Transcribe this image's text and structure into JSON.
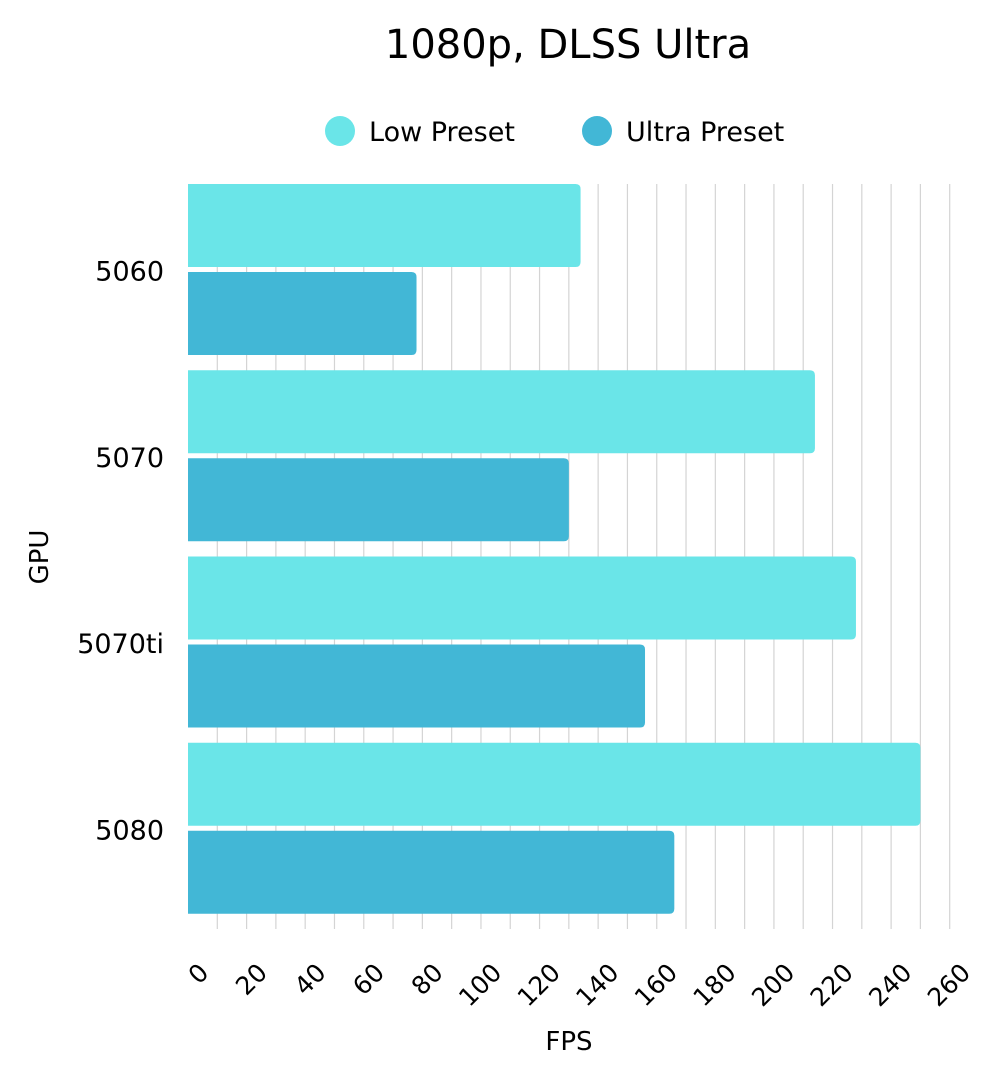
{
  "chart_data": {
    "type": "bar",
    "orientation": "horizontal",
    "title": "1080p, DLSS Ultra",
    "xlabel": "FPS",
    "ylabel": "GPU",
    "categories": [
      "5060",
      "5070",
      "5070ti",
      "5080"
    ],
    "series": [
      {
        "name": "Low Preset",
        "color": "#6ae5e8",
        "values": [
          134,
          214,
          228,
          250
        ]
      },
      {
        "name": "Ultra Preset",
        "color": "#42b7d6",
        "values": [
          78,
          130,
          156,
          166
        ]
      }
    ],
    "xlim": [
      0,
      260
    ],
    "xticks": [
      0,
      20,
      40,
      60,
      80,
      100,
      120,
      140,
      160,
      180,
      200,
      220,
      240,
      260
    ],
    "minor_grid_step": 10,
    "grid": true,
    "legend": "top-center"
  }
}
